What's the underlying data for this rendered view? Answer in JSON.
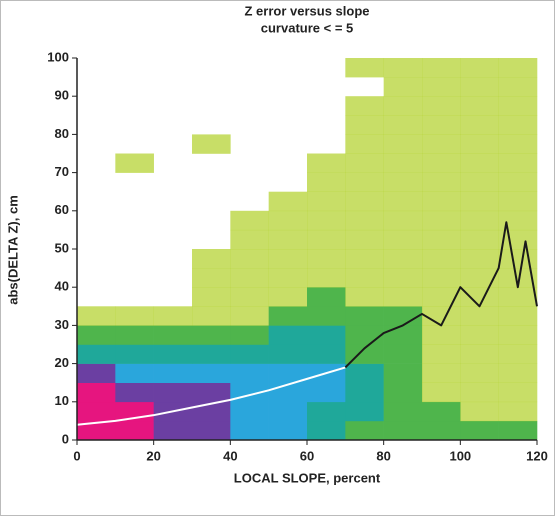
{
  "chart_data": {
    "type": "heatmap",
    "title": "Z error versus slope",
    "subtitle": "curvature < = 5",
    "xlabel": "LOCAL SLOPE, percent",
    "ylabel": "abs(DELTA Z), cm",
    "xlim": [
      0,
      120
    ],
    "ylim": [
      0,
      100
    ],
    "xticks": [
      0,
      20,
      40,
      60,
      80,
      100,
      120
    ],
    "yticks": [
      0,
      10,
      20,
      30,
      40,
      50,
      60,
      70,
      80,
      90,
      100
    ],
    "xbins": [
      0,
      10,
      20,
      30,
      40,
      50,
      60,
      70,
      80,
      90,
      100,
      110,
      120
    ],
    "ybins": [
      0,
      5,
      10,
      15,
      20,
      25,
      30,
      35,
      40,
      45,
      50,
      55,
      60,
      65,
      70,
      75,
      80,
      85,
      90,
      95,
      100
    ],
    "colorscale": [
      "#b5d334",
      "#4fb54c",
      "#1fa89a",
      "#2aa6dc",
      "#6b3fa2",
      "#e6157f"
    ],
    "z": [
      [
        6,
        6,
        6,
        5,
        3,
        2,
        1,
        0,
        0,
        0,
        0,
        0,
        0,
        0,
        0,
        0,
        0,
        0,
        0,
        0
      ],
      [
        6,
        6,
        5,
        4,
        3,
        2,
        1,
        0,
        0,
        0,
        0,
        0,
        0,
        0,
        1,
        0,
        0,
        0,
        0,
        0
      ],
      [
        5,
        5,
        5,
        4,
        3,
        2,
        1,
        0,
        0,
        0,
        0,
        0,
        0,
        0,
        0,
        0,
        0,
        0,
        0,
        0
      ],
      [
        5,
        5,
        5,
        4,
        3,
        2,
        1,
        1,
        1,
        1,
        0,
        0,
        0,
        0,
        0,
        1,
        0,
        0,
        0,
        0
      ],
      [
        4,
        4,
        4,
        4,
        3,
        2,
        1,
        1,
        1,
        1,
        1,
        1,
        0,
        0,
        0,
        0,
        0,
        0,
        0,
        0
      ],
      [
        4,
        4,
        4,
        4,
        3,
        3,
        2,
        1,
        1,
        1,
        1,
        1,
        1,
        0,
        0,
        0,
        0,
        0,
        0,
        0
      ],
      [
        3,
        3,
        4,
        4,
        3,
        3,
        2,
        2,
        1,
        1,
        1,
        1,
        1,
        1,
        1,
        0,
        0,
        0,
        0,
        0
      ],
      [
        2,
        3,
        3,
        3,
        2,
        2,
        2,
        1,
        1,
        1,
        1,
        1,
        1,
        1,
        1,
        1,
        1,
        1,
        0,
        1
      ],
      [
        2,
        2,
        2,
        2,
        2,
        2,
        2,
        1,
        1,
        1,
        1,
        1,
        1,
        1,
        1,
        1,
        1,
        1,
        1,
        1
      ],
      [
        2,
        2,
        1,
        1,
        1,
        1,
        1,
        1,
        1,
        1,
        1,
        1,
        1,
        1,
        1,
        1,
        1,
        1,
        1,
        1
      ],
      [
        2,
        1,
        1,
        1,
        1,
        1,
        1,
        1,
        1,
        1,
        1,
        1,
        1,
        1,
        1,
        1,
        1,
        1,
        1,
        1
      ],
      [
        2,
        1,
        1,
        1,
        1,
        1,
        1,
        1,
        1,
        1,
        1,
        1,
        1,
        1,
        1,
        1,
        1,
        1,
        1,
        1
      ]
    ],
    "series": [
      {
        "color": "#ffffff",
        "x": [
          0,
          10,
          20,
          30,
          40,
          50,
          60,
          70
        ],
        "values": [
          4,
          5,
          6.5,
          8.5,
          10.5,
          13,
          16,
          19
        ]
      },
      {
        "color": "#1a1a1a",
        "x": [
          70,
          75,
          80,
          85,
          90,
          95,
          100,
          105,
          110,
          112,
          115,
          117,
          120
        ],
        "values": [
          19,
          24,
          28,
          30,
          33,
          30,
          40,
          35,
          45,
          57,
          40,
          52,
          35
        ]
      }
    ]
  }
}
